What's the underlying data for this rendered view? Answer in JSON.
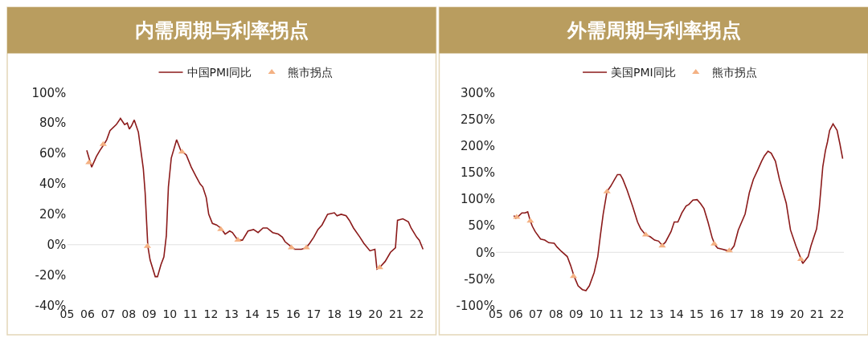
{
  "chart_data": [
    {
      "type": "line",
      "title": "内需周期与利率拐点",
      "legend": "top",
      "grid": false,
      "ref_lines": [
        {
          "axis": "y",
          "value": 0,
          "color": "#e0e0e0"
        }
      ],
      "xlim": [
        2005,
        2022.4
      ],
      "ylim": [
        -40,
        100
      ],
      "xticks": [
        {
          "value": 2005,
          "label": "05"
        },
        {
          "value": 2006,
          "label": "06"
        },
        {
          "value": 2007,
          "label": "07"
        },
        {
          "value": 2008,
          "label": "08"
        },
        {
          "value": 2009,
          "label": "09"
        },
        {
          "value": 2010,
          "label": "10"
        },
        {
          "value": 2011,
          "label": "11"
        },
        {
          "value": 2012,
          "label": "12"
        },
        {
          "value": 2013,
          "label": "13"
        },
        {
          "value": 2014,
          "label": "14"
        },
        {
          "value": 2015,
          "label": "15"
        },
        {
          "value": 2016,
          "label": "16"
        },
        {
          "value": 2017,
          "label": "17"
        },
        {
          "value": 2018,
          "label": "18"
        },
        {
          "value": 2019,
          "label": "19"
        },
        {
          "value": 2020,
          "label": "20"
        },
        {
          "value": 2021,
          "label": "21"
        },
        {
          "value": 2022,
          "label": "22"
        }
      ],
      "yticks": [
        {
          "value": -40,
          "label": "-40%"
        },
        {
          "value": -20,
          "label": "-20%"
        },
        {
          "value": 0,
          "label": "0%"
        },
        {
          "value": 20,
          "label": "20%"
        },
        {
          "value": 40,
          "label": "40%"
        },
        {
          "value": 60,
          "label": "60%"
        },
        {
          "value": 80,
          "label": "80%"
        },
        {
          "value": 100,
          "label": "100%"
        }
      ],
      "series": [
        {
          "name": "中国PMI同比",
          "color": "#8b1a1a",
          "marker": "none",
          "line_style": "solid",
          "x": [
            2005.96,
            2006.2,
            2006.43,
            2006.6,
            2006.8,
            2006.93,
            2007.09,
            2007.4,
            2007.6,
            2007.8,
            2007.93,
            2008.03,
            2008.13,
            2008.27,
            2008.47,
            2008.63,
            2008.71,
            2008.8,
            2008.87,
            2008.93,
            2009.04,
            2009.29,
            2009.4,
            2009.57,
            2009.71,
            2009.83,
            2009.93,
            2010.07,
            2010.33,
            2010.53,
            2010.8,
            2011.04,
            2011.27,
            2011.47,
            2011.6,
            2011.77,
            2011.89,
            2012.07,
            2012.27,
            2012.47,
            2012.69,
            2012.91,
            2013.04,
            2013.31,
            2013.53,
            2013.8,
            2014.07,
            2014.29,
            2014.53,
            2014.73,
            2015.0,
            2015.27,
            2015.47,
            2015.6,
            2015.87,
            2016.07,
            2016.4,
            2016.63,
            2016.8,
            2017.0,
            2017.2,
            2017.4,
            2017.67,
            2018.0,
            2018.13,
            2018.33,
            2018.57,
            2018.73,
            2018.93,
            2019.24,
            2019.43,
            2019.73,
            2019.97,
            2020.07,
            2020.2,
            2020.47,
            2020.73,
            2020.97,
            2021.07,
            2021.33,
            2021.6,
            2021.73,
            2022.0,
            2022.13,
            2022.31
          ],
          "values": [
            62,
            51,
            58,
            62,
            66,
            69,
            75,
            79,
            83,
            79,
            80,
            76,
            78,
            82,
            74,
            58,
            50,
            34,
            15,
            -1,
            -10,
            -21,
            -21,
            -13,
            -8,
            6,
            38,
            57,
            69,
            62,
            59,
            51,
            45,
            40,
            38,
            31,
            20,
            14,
            13,
            11,
            7,
            9,
            8,
            3,
            3,
            9,
            10,
            8,
            11,
            11,
            8,
            7,
            5,
            2,
            -1,
            -3,
            -3,
            -2,
            1,
            5,
            10,
            13,
            20,
            21,
            19,
            20,
            19,
            16,
            11,
            5,
            1,
            -4,
            -3,
            -16,
            -15,
            -11,
            -5,
            -2,
            16,
            17,
            15,
            11,
            5,
            3,
            -3
          ]
        },
        {
          "name": "熊市拐点",
          "type": "scatter",
          "color": "#f4b183",
          "marker": "triangle",
          "x": [
            2006.07,
            2006.76,
            2008.91,
            2010.59,
            2012.48,
            2013.31,
            2015.91,
            2016.64,
            2020.2
          ],
          "values": [
            54,
            66,
            -1,
            61,
            10,
            3,
            -2,
            -2,
            -15
          ]
        }
      ]
    },
    {
      "type": "line",
      "title": "外需周期与利率拐点",
      "legend": "top",
      "grid": false,
      "ref_lines": [
        {
          "axis": "y",
          "value": 0,
          "color": "#e0e0e0"
        }
      ],
      "xlim": [
        2005,
        2022.35
      ],
      "ylim": [
        -100,
        300
      ],
      "xticks": [
        {
          "value": 2005,
          "label": "05"
        },
        {
          "value": 2006,
          "label": "06"
        },
        {
          "value": 2007,
          "label": "07"
        },
        {
          "value": 2008,
          "label": "08"
        },
        {
          "value": 2009,
          "label": "09"
        },
        {
          "value": 2010,
          "label": "10"
        },
        {
          "value": 2011,
          "label": "11"
        },
        {
          "value": 2012,
          "label": "12"
        },
        {
          "value": 2013,
          "label": "13"
        },
        {
          "value": 2014,
          "label": "14"
        },
        {
          "value": 2015,
          "label": "15"
        },
        {
          "value": 2016,
          "label": "16"
        },
        {
          "value": 2017,
          "label": "17"
        },
        {
          "value": 2018,
          "label": "18"
        },
        {
          "value": 2019,
          "label": "19"
        },
        {
          "value": 2020,
          "label": "20"
        },
        {
          "value": 2021,
          "label": "21"
        },
        {
          "value": 2022,
          "label": "22"
        }
      ],
      "yticks": [
        {
          "value": -100,
          "label": "-100%"
        },
        {
          "value": -50,
          "label": "-50%"
        },
        {
          "value": 0,
          "label": "0%"
        },
        {
          "value": 50,
          "label": "50%"
        },
        {
          "value": 100,
          "label": "100%"
        },
        {
          "value": 150,
          "label": "150%"
        },
        {
          "value": 200,
          "label": "200%"
        },
        {
          "value": 250,
          "label": "250%"
        },
        {
          "value": 300,
          "label": "300%"
        }
      ],
      "series": [
        {
          "name": "美国PMI同比",
          "color": "#8b1a1a",
          "marker": "none",
          "line_style": "solid",
          "x": [
            2005.9,
            2006.0,
            2006.14,
            2006.3,
            2006.45,
            2006.59,
            2006.72,
            2006.82,
            2006.96,
            2007.23,
            2007.44,
            2007.64,
            2007.91,
            2008.05,
            2008.26,
            2008.56,
            2008.73,
            2008.9,
            2009.1,
            2009.31,
            2009.49,
            2009.66,
            2009.9,
            2010.08,
            2010.21,
            2010.35,
            2010.54,
            2010.72,
            2010.92,
            2011.06,
            2011.2,
            2011.33,
            2011.54,
            2011.81,
            2012.06,
            2012.22,
            2012.46,
            2012.7,
            2012.91,
            2013.11,
            2013.29,
            2013.45,
            2013.73,
            2013.89,
            2014.07,
            2014.27,
            2014.48,
            2014.62,
            2014.82,
            2015.03,
            2015.21,
            2015.37,
            2015.57,
            2015.78,
            2015.92,
            2016.05,
            2016.26,
            2016.46,
            2016.67,
            2016.87,
            2017.08,
            2017.42,
            2017.63,
            2017.83,
            2018.04,
            2018.24,
            2018.38,
            2018.56,
            2018.72,
            2018.93,
            2019.13,
            2019.47,
            2019.68,
            2019.95,
            2020.16,
            2020.29,
            2020.56,
            2020.7,
            2020.98,
            2021.11,
            2021.29,
            2021.42,
            2021.52,
            2021.63,
            2021.8,
            2022.0,
            2022.14,
            2022.28
          ],
          "values": [
            69,
            64,
            68,
            74,
            74,
            76,
            59,
            49,
            39,
            25,
            23,
            18,
            17,
            10,
            2,
            -8,
            -25,
            -45,
            -63,
            -70,
            -72,
            -63,
            -38,
            -8,
            32,
            72,
            114,
            124,
            137,
            146,
            146,
            137,
            117,
            87,
            57,
            44,
            33,
            29,
            23,
            21,
            13,
            19,
            39,
            57,
            57,
            74,
            87,
            90,
            98,
            99,
            91,
            82,
            57,
            27,
            14,
            8,
            6,
            4,
            2,
            12,
            42,
            72,
            112,
            137,
            154,
            171,
            181,
            190,
            186,
            171,
            137,
            92,
            42,
            12,
            -8,
            -21,
            -8,
            12,
            44,
            82,
            161,
            191,
            207,
            229,
            241,
            229,
            204,
            176
          ]
        },
        {
          "name": "熊市拐点",
          "type": "scatter",
          "color": "#f4b183",
          "marker": "triangle",
          "x": [
            2006.04,
            2006.72,
            2008.87,
            2010.54,
            2012.47,
            2013.29,
            2015.88,
            2016.63,
            2020.2
          ],
          "values": [
            66,
            59,
            -45,
            114,
            33,
            12,
            16,
            3,
            -13
          ]
        }
      ]
    }
  ]
}
